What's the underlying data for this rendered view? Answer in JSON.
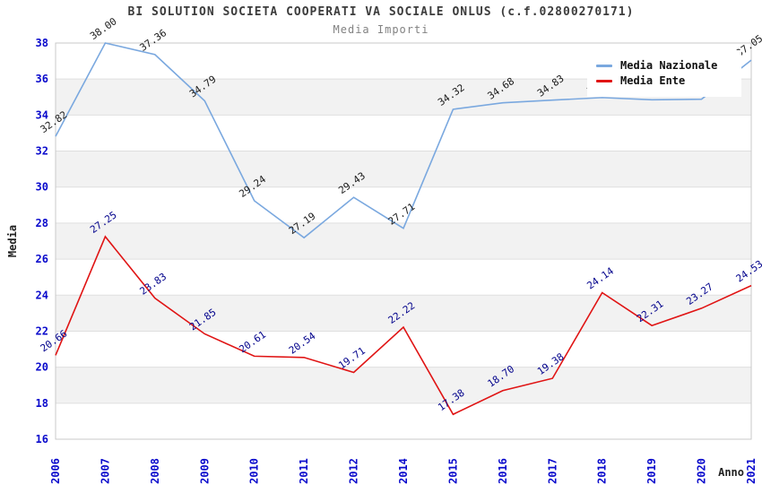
{
  "header": {
    "title": "BI SOLUTION SOCIETA COOPERATI VA SOCIALE ONLUS (c.f.02800270171)",
    "subtitle": "Media Importi"
  },
  "legend": {
    "items": [
      {
        "label": "Media Nazionale",
        "color": "#7AA8DF"
      },
      {
        "label": "Media Ente",
        "color": "#E01414"
      }
    ]
  },
  "axes": {
    "y_label": "Media",
    "x_label": "Anno",
    "tick_color": "#0A0ACC",
    "y_ticks": [
      16,
      18,
      20,
      22,
      24,
      26,
      28,
      30,
      32,
      34,
      36,
      38
    ]
  },
  "chart_data": {
    "type": "line",
    "title": "Media Importi",
    "xlabel": "Anno",
    "ylabel": "Media",
    "ylim": [
      16,
      38
    ],
    "grid": "horizontal-bands",
    "legend_position": "top-right",
    "categories": [
      "2006",
      "2007",
      "2008",
      "2009",
      "2010",
      "2011",
      "2012",
      "2014",
      "2015",
      "2016",
      "2017",
      "2018",
      "2019",
      "2020",
      "2021"
    ],
    "series": [
      {
        "name": "Media Nazionale",
        "color": "#7AA8DF",
        "label_color": "#1A1A1A",
        "values": [
          32.82,
          38.0,
          37.36,
          34.79,
          29.24,
          27.19,
          29.43,
          27.71,
          34.32,
          34.68,
          34.83,
          34.97,
          34.85,
          34.88,
          37.05
        ]
      },
      {
        "name": "Media Ente",
        "color": "#E01414",
        "label_color": "#00008B",
        "values": [
          20.66,
          27.25,
          23.83,
          21.85,
          20.61,
          20.54,
          19.71,
          22.22,
          17.38,
          18.7,
          19.38,
          24.14,
          22.31,
          23.27,
          24.53
        ]
      }
    ],
    "styles": {
      "band_gray": "#F2F2F2",
      "gridline": "#DFDFDF",
      "frame": "#C9C9C9"
    }
  }
}
